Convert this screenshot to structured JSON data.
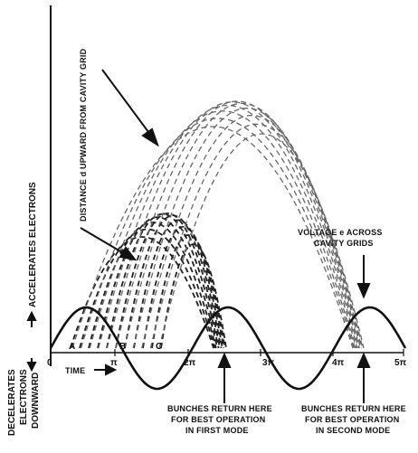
{
  "labels": {
    "distance": "DISTANCE d UPWARD FROM CAVITY GRID",
    "voltage_line1": "VOLTAGE e ACROSS",
    "voltage_line2": "CAVITY GRIDS",
    "accelerates": "ACCELERATES ELECTRONS",
    "decelerates_line1": "DECELERATES",
    "decelerates_line2": "ELECTRONS",
    "decelerates_line3": "DOWNWARD",
    "time": "TIME",
    "point_a": "A",
    "point_b": "B",
    "point_c": "C",
    "first_mode_line1": "BUNCHES RETURN HERE",
    "first_mode_line2": "FOR BEST OPERATION",
    "first_mode_line3": "IN FIRST MODE",
    "second_mode_line1": "BUNCHES RETURN HERE",
    "second_mode_line2": "FOR BEST OPERATION",
    "second_mode_line3": "IN SECOND MODE"
  },
  "axis_ticks": [
    "0",
    "π",
    "2π",
    "3π",
    "4π",
    "5π"
  ],
  "colors": {
    "ink": "#111111",
    "first_mode_curves": "#222222",
    "second_mode_curves": "#666666",
    "background": "#ffffff"
  }
}
